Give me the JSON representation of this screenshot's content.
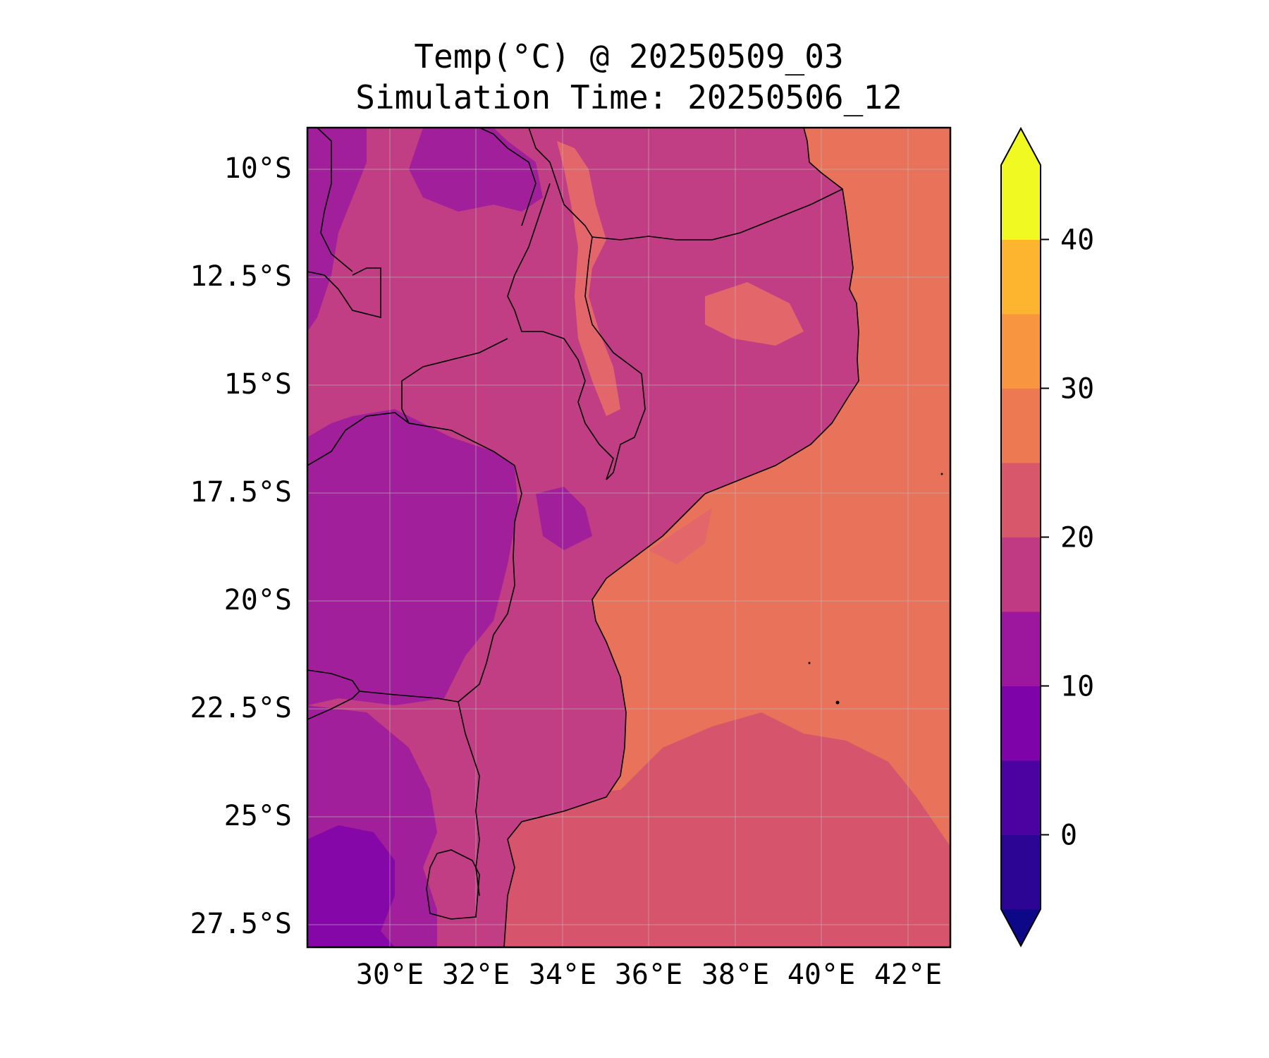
{
  "map": {
    "title_line1": "Temp(°C) @ 20250509_03",
    "title_line2": "Simulation Time: 20250506_12",
    "lat_ticks": [
      "10°S",
      "12.5°S",
      "15°S",
      "17.5°S",
      "20°S",
      "22.5°S",
      "25°S",
      "27.5°S"
    ],
    "lon_ticks": [
      "30°E",
      "32°E",
      "34°E",
      "36°E",
      "38°E",
      "40°E",
      "42°E"
    ],
    "extent": {
      "lon_min": 28.0,
      "lon_max": 42.9,
      "lat_min": -28.0,
      "lat_max": -9.0
    },
    "grid": true
  },
  "colorbar": {
    "labels": [
      "0",
      "10",
      "20",
      "30",
      "40"
    ],
    "levels": [
      -5,
      0,
      5,
      10,
      15,
      20,
      25,
      30,
      35,
      40,
      45
    ],
    "extend": "both",
    "colors": [
      "#0d0887",
      "#2c0594",
      "#4c02a1",
      "#7e03a8",
      "#9c179e",
      "#c03a83",
      "#d8576b",
      "#ed7953",
      "#f89540",
      "#fdb42f",
      "#f0f921"
    ]
  },
  "palette": {
    "ocean": "#e8735a",
    "ocean_south": "#d6546c",
    "land_warm": "#c13d84",
    "land_cool": "#a11f9a",
    "land_cold": "#8607a8",
    "ridge": "#e3666b",
    "border": "#000000"
  }
}
